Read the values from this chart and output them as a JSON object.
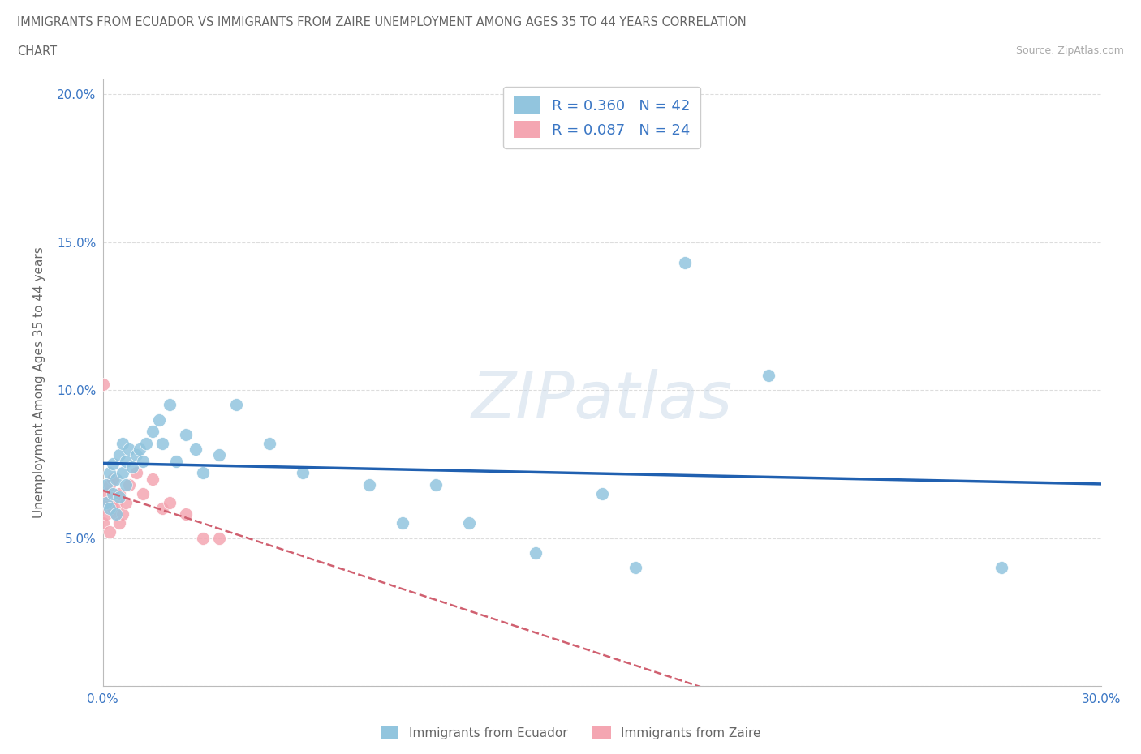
{
  "title_line1": "IMMIGRANTS FROM ECUADOR VS IMMIGRANTS FROM ZAIRE UNEMPLOYMENT AMONG AGES 35 TO 44 YEARS CORRELATION",
  "title_line2": "CHART",
  "source": "Source: ZipAtlas.com",
  "ylabel": "Unemployment Among Ages 35 to 44 years",
  "xlim": [
    0.0,
    0.3
  ],
  "ylim": [
    0.0,
    0.205
  ],
  "xtick_positions": [
    0.0,
    0.05,
    0.1,
    0.15,
    0.2,
    0.25,
    0.3
  ],
  "xticklabels": [
    "0.0%",
    "",
    "",
    "",
    "",
    "",
    "30.0%"
  ],
  "ytick_positions": [
    0.0,
    0.05,
    0.1,
    0.15,
    0.2
  ],
  "yticklabels": [
    "",
    "5.0%",
    "10.0%",
    "15.0%",
    "20.0%"
  ],
  "ecuador_color": "#92C5DE",
  "zaire_color": "#F4A6B2",
  "ecuador_line_color": "#2060B0",
  "zaire_line_color": "#D06070",
  "R_ecuador": 0.36,
  "N_ecuador": 42,
  "R_zaire": 0.087,
  "N_zaire": 24,
  "legend_ecuador_label": "Immigrants from Ecuador",
  "legend_zaire_label": "Immigrants from Zaire",
  "watermark": "ZIPatlas",
  "ecuador_x": [
    0.001,
    0.001,
    0.002,
    0.002,
    0.003,
    0.003,
    0.004,
    0.004,
    0.005,
    0.005,
    0.006,
    0.006,
    0.007,
    0.007,
    0.008,
    0.009,
    0.01,
    0.011,
    0.012,
    0.013,
    0.015,
    0.017,
    0.018,
    0.02,
    0.022,
    0.025,
    0.028,
    0.03,
    0.035,
    0.04,
    0.05,
    0.06,
    0.08,
    0.09,
    0.1,
    0.11,
    0.13,
    0.15,
    0.16,
    0.2,
    0.175,
    0.27
  ],
  "ecuador_y": [
    0.062,
    0.068,
    0.06,
    0.072,
    0.065,
    0.075,
    0.058,
    0.07,
    0.064,
    0.078,
    0.072,
    0.082,
    0.068,
    0.076,
    0.08,
    0.074,
    0.078,
    0.08,
    0.076,
    0.082,
    0.086,
    0.09,
    0.082,
    0.095,
    0.076,
    0.085,
    0.08,
    0.072,
    0.078,
    0.095,
    0.082,
    0.072,
    0.068,
    0.055,
    0.068,
    0.055,
    0.045,
    0.065,
    0.04,
    0.105,
    0.143,
    0.04
  ],
  "zaire_x": [
    0.0,
    0.0,
    0.001,
    0.001,
    0.002,
    0.002,
    0.003,
    0.003,
    0.004,
    0.004,
    0.005,
    0.005,
    0.006,
    0.007,
    0.008,
    0.01,
    0.012,
    0.015,
    0.018,
    0.02,
    0.025,
    0.03,
    0.035,
    0.0
  ],
  "zaire_y": [
    0.055,
    0.062,
    0.058,
    0.065,
    0.052,
    0.068,
    0.06,
    0.07,
    0.058,
    0.062,
    0.055,
    0.065,
    0.058,
    0.062,
    0.068,
    0.072,
    0.065,
    0.07,
    0.06,
    0.062,
    0.058,
    0.05,
    0.05,
    0.102
  ],
  "background_color": "#FFFFFF",
  "grid_color": "#DDDDDD",
  "title_color": "#666666",
  "source_color": "#AAAAAA",
  "tick_label_color": "#3A76C4"
}
